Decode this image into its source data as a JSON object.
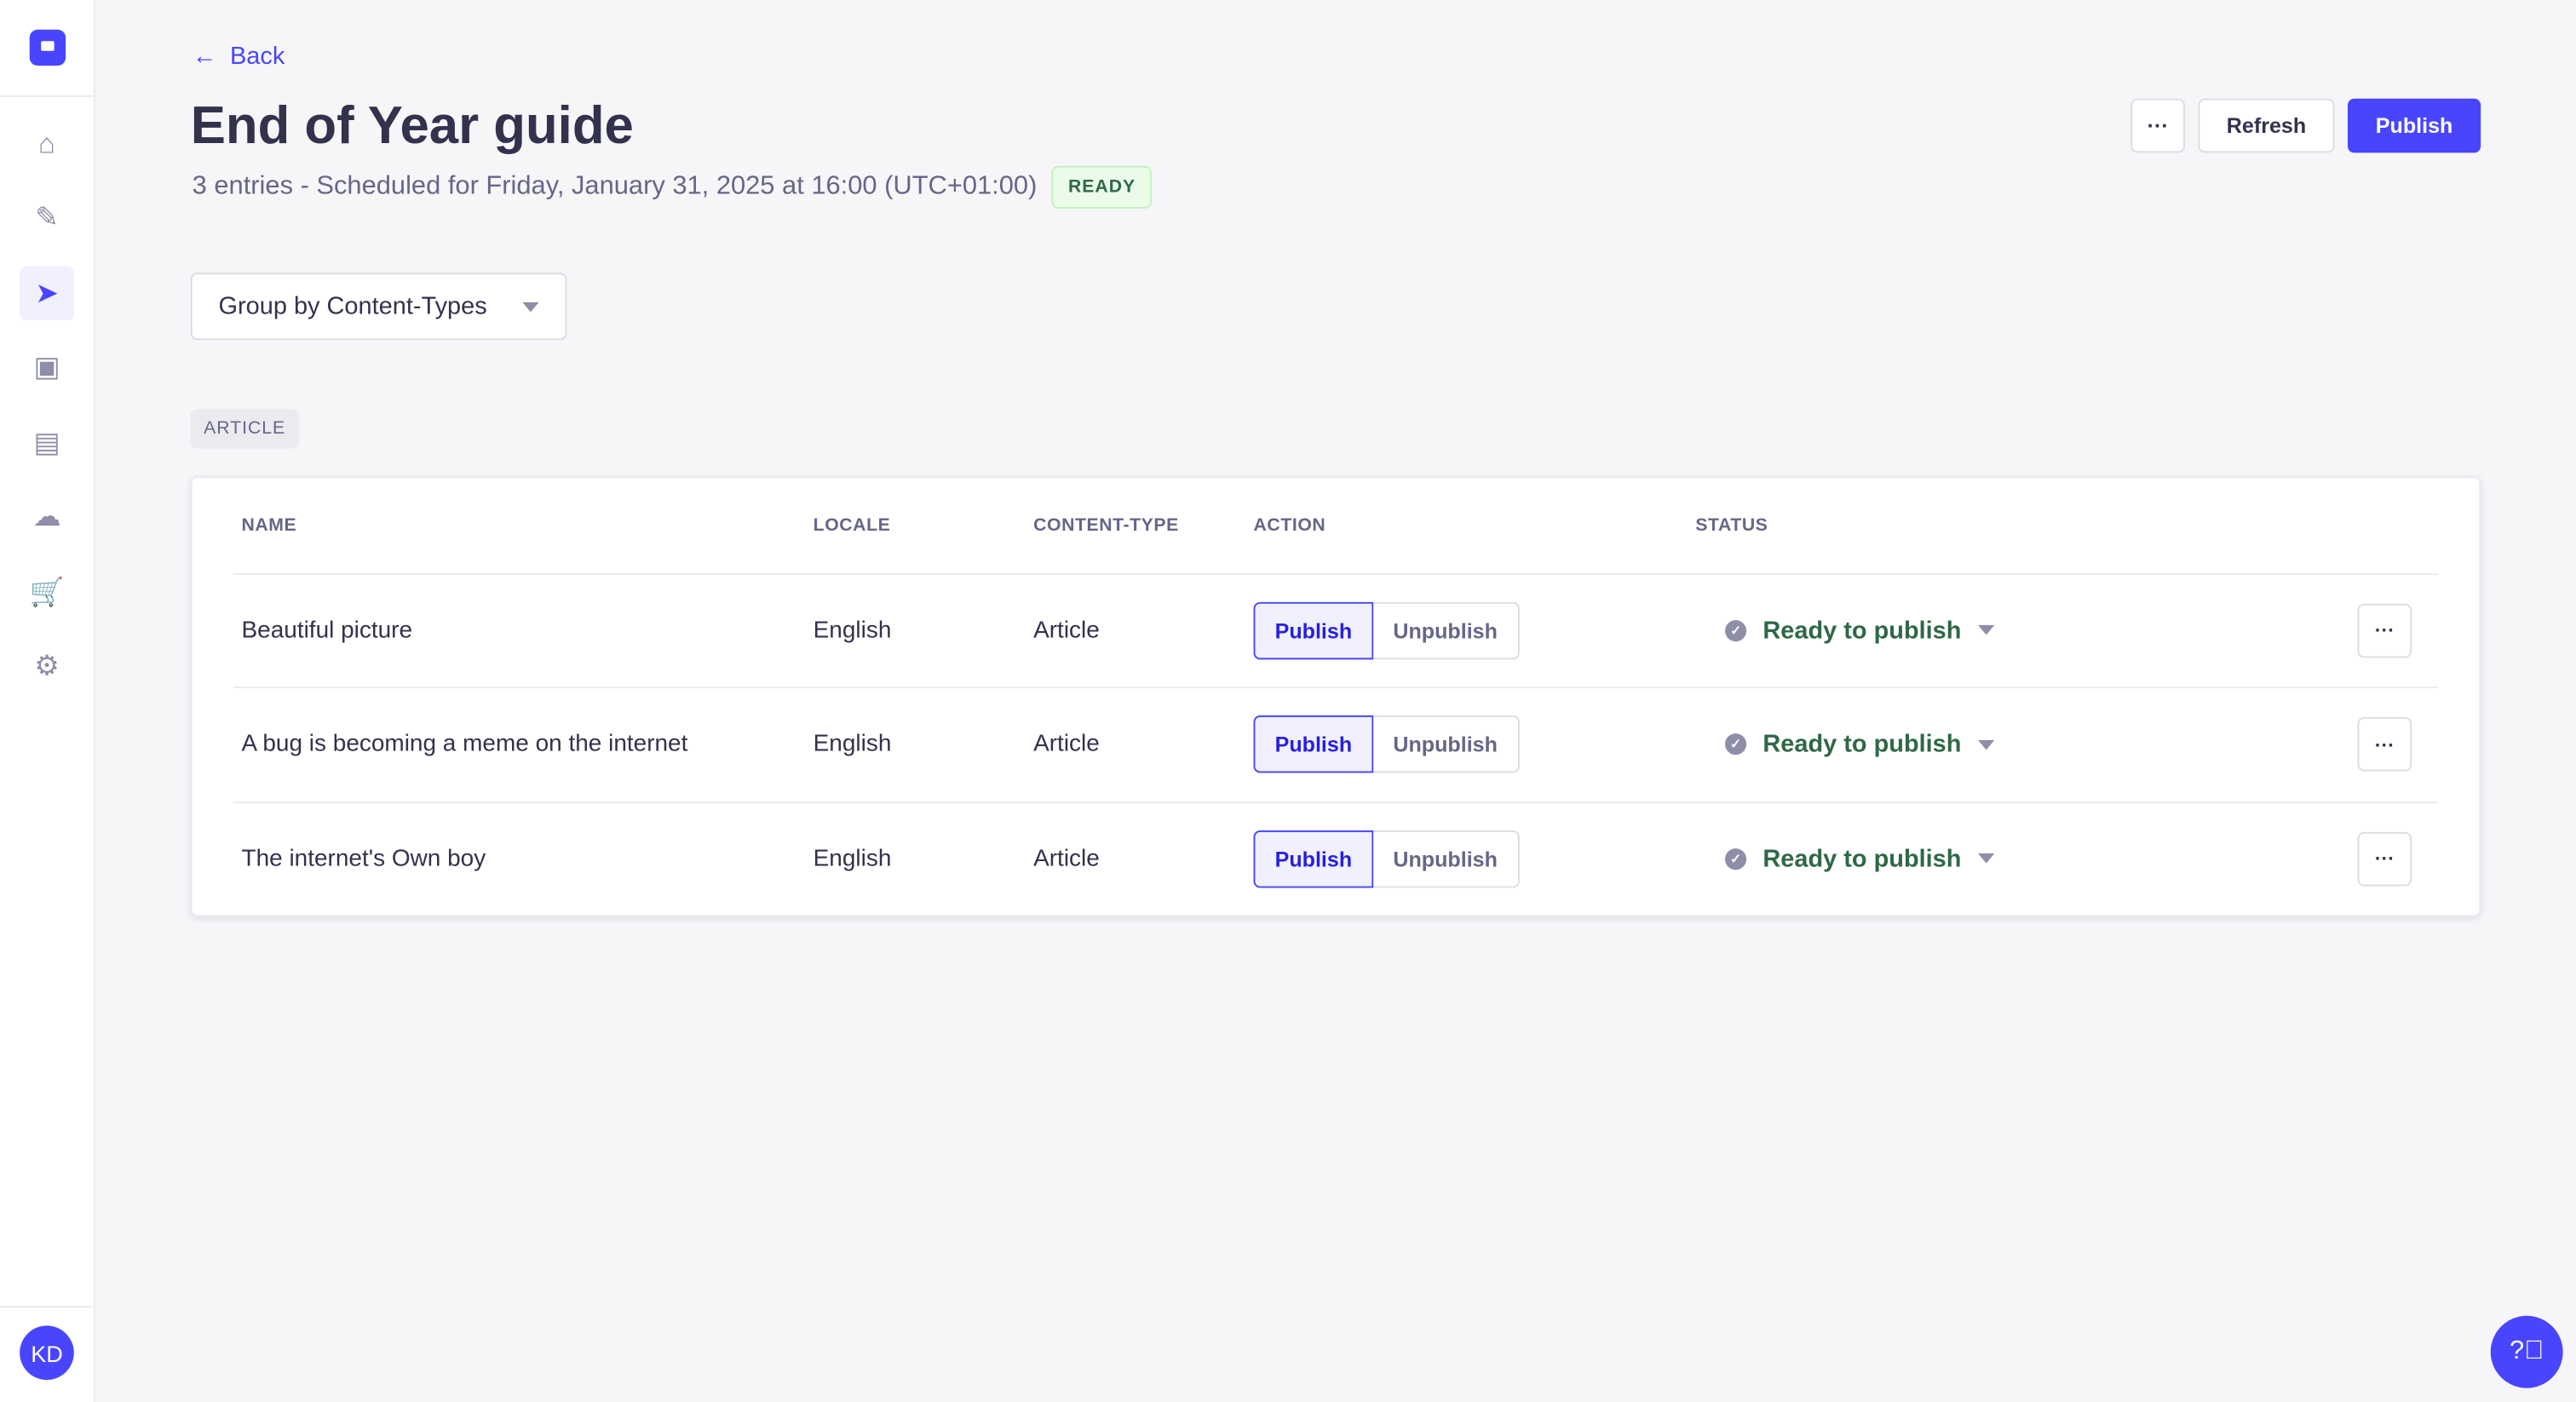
{
  "sidebar": {
    "user_initials": "KD",
    "items": [
      {
        "name": "home",
        "icon": "home-icon",
        "glyph": "⌂"
      },
      {
        "name": "content-manager",
        "icon": "feather-icon",
        "glyph": "✎"
      },
      {
        "name": "releases",
        "icon": "paper-plane-icon",
        "glyph": "➤",
        "active": true
      },
      {
        "name": "media-library",
        "icon": "images-icon",
        "glyph": "▣"
      },
      {
        "name": "content-type-builder",
        "icon": "layout-icon",
        "glyph": "▤"
      },
      {
        "name": "cloud",
        "icon": "cloud-icon",
        "glyph": "☁"
      },
      {
        "name": "marketplace",
        "icon": "cart-icon",
        "glyph": "🛒"
      },
      {
        "name": "settings",
        "icon": "gear-icon",
        "glyph": "⚙"
      }
    ]
  },
  "header": {
    "back_label": "Back",
    "title": "End of Year guide",
    "subtitle": "3 entries - Scheduled for Friday, January 31, 2025 at 16:00 (UTC+01:00)",
    "status_badge": "READY",
    "more_label": "···",
    "refresh_label": "Refresh",
    "publish_label": "Publish"
  },
  "group_by": {
    "value": "Group by Content-Types"
  },
  "group_tag": "ARTICLE",
  "table": {
    "columns": [
      "NAME",
      "LOCALE",
      "CONTENT-TYPE",
      "ACTION",
      "STATUS"
    ],
    "rows": [
      {
        "name": "Beautiful picture",
        "locale": "English",
        "content_type": "Article",
        "action_publish": "Publish",
        "action_unpublish": "Unpublish",
        "selected_action": "Publish",
        "status": "Ready to publish"
      },
      {
        "name": "A bug is becoming a meme on the internet",
        "locale": "English",
        "content_type": "Article",
        "action_publish": "Publish",
        "action_unpublish": "Unpublish",
        "selected_action": "Publish",
        "status": "Ready to publish"
      },
      {
        "name": "The internet's Own boy",
        "locale": "English",
        "content_type": "Article",
        "action_publish": "Publish",
        "action_unpublish": "Unpublish",
        "selected_action": "Publish",
        "status": "Ready to publish"
      }
    ]
  },
  "colors": {
    "primary": "#4945ff",
    "success": "#2f6846",
    "background": "#f6f6f9"
  }
}
